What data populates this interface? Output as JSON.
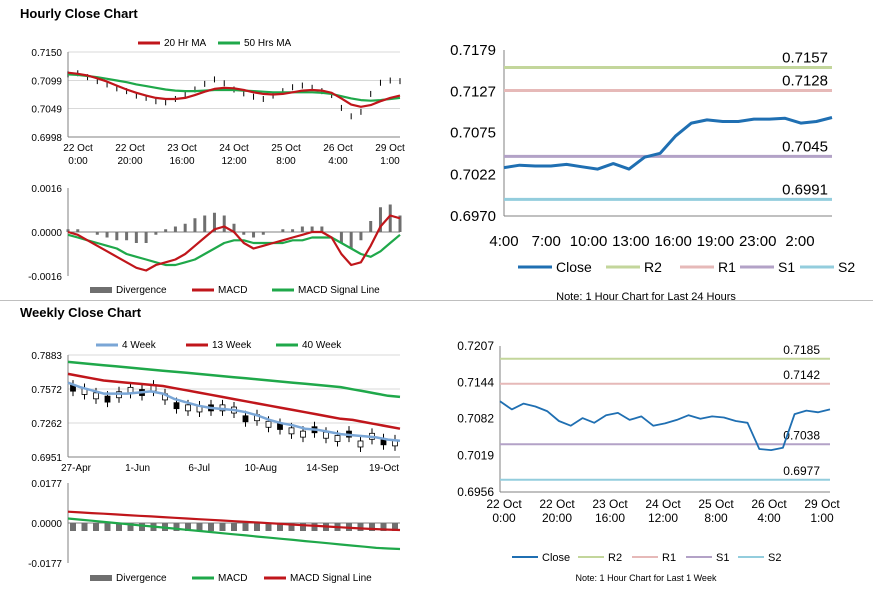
{
  "sections": {
    "hourly_title": "Hourly Close Chart",
    "weekly_title": "Weekly Close Chart"
  },
  "colors": {
    "close": "#1f6fb2",
    "ma20": "#c0161b",
    "ma50": "#1fa84a",
    "r2": "#c3d69b",
    "r1": "#e6b9b8",
    "s1": "#b3a2c7",
    "s2": "#93cddd",
    "divergence": "#6f6f6f",
    "signal": "#1fa84a"
  },
  "chart_data": [
    {
      "id": "hourly_price",
      "type": "line",
      "legend": [
        "20 Hr MA",
        "50 Hrs MA"
      ],
      "yticks": [
        "0.7150",
        "0.7099",
        "0.7049",
        "0.6998"
      ],
      "ylim": [
        0.6998,
        0.715
      ],
      "xticks": [
        [
          "22 Oct",
          "0:00"
        ],
        [
          "22 Oct",
          "20:00"
        ],
        [
          "23 Oct",
          "16:00"
        ],
        [
          "24 Oct",
          "12:00"
        ],
        [
          "25 Oct",
          "8:00"
        ],
        [
          "26 Oct",
          "4:00"
        ],
        [
          "29 Oct",
          "1:00"
        ]
      ],
      "close": [
        0.711,
        0.7112,
        0.7105,
        0.7098,
        0.7092,
        0.7085,
        0.708,
        0.7072,
        0.7068,
        0.7062,
        0.706,
        0.7066,
        0.7074,
        0.7083,
        0.7093,
        0.7101,
        0.7094,
        0.7083,
        0.7076,
        0.707,
        0.7066,
        0.7072,
        0.708,
        0.7087,
        0.709,
        0.7086,
        0.708,
        0.7073,
        0.705,
        0.7035,
        0.7043,
        0.7075,
        0.7095,
        0.7099,
        0.7098
      ],
      "ma20": [
        0.7113,
        0.7111,
        0.7108,
        0.7103,
        0.7097,
        0.709,
        0.7083,
        0.7077,
        0.7072,
        0.7068,
        0.7066,
        0.7066,
        0.7068,
        0.7073,
        0.7079,
        0.7084,
        0.7086,
        0.7085,
        0.7082,
        0.7078,
        0.7075,
        0.7074,
        0.7075,
        0.7078,
        0.7081,
        0.7082,
        0.7081,
        0.7077,
        0.7067,
        0.7056,
        0.7052,
        0.7055,
        0.7062,
        0.7068,
        0.7072
      ],
      "ma50": [
        0.711,
        0.7109,
        0.7107,
        0.7105,
        0.7102,
        0.7099,
        0.7096,
        0.7092,
        0.7089,
        0.7086,
        0.7083,
        0.7081,
        0.708,
        0.708,
        0.7081,
        0.7082,
        0.7082,
        0.7082,
        0.7081,
        0.708,
        0.7079,
        0.7078,
        0.7078,
        0.7078,
        0.7078,
        0.7078,
        0.7077,
        0.7075,
        0.7071,
        0.7067,
        0.7064,
        0.7063,
        0.7064,
        0.7066,
        0.7068
      ]
    },
    {
      "id": "hourly_macd",
      "type": "bar",
      "legend": [
        "Divergence",
        "MACD",
        "MACD Signal Line"
      ],
      "yticks": [
        "0.0016",
        "0.0000",
        "-0.0016"
      ],
      "ylim": [
        -0.0016,
        0.0016
      ],
      "macd": [
        0.0,
        -0.0001,
        -0.0003,
        -0.0005,
        -0.0007,
        -0.0009,
        -0.0011,
        -0.0013,
        -0.0014,
        -0.0012,
        -0.0011,
        -0.001,
        -0.0008,
        -0.0005,
        -0.0002,
        0.0001,
        0.0002,
        0.0,
        -0.0004,
        -0.0006,
        -0.0005,
        -0.0004,
        -0.0003,
        -0.0002,
        -0.0001,
        0.0,
        0.0,
        -0.0002,
        -0.0008,
        -0.0012,
        -0.0011,
        -0.0005,
        0.0002,
        0.0006,
        0.0005
      ],
      "signal": [
        -0.0001,
        -0.0002,
        -0.0003,
        -0.0004,
        -0.0005,
        -0.0006,
        -0.0008,
        -0.0009,
        -0.001,
        -0.0011,
        -0.0012,
        -0.0012,
        -0.0011,
        -0.001,
        -0.0008,
        -0.0006,
        -0.0004,
        -0.0003,
        -0.0003,
        -0.0004,
        -0.0004,
        -0.0004,
        -0.0004,
        -0.0003,
        -0.0003,
        -0.0002,
        -0.0002,
        -0.0002,
        -0.0004,
        -0.0006,
        -0.0008,
        -0.0009,
        -0.0007,
        -0.0004,
        -0.0001
      ]
    },
    {
      "id": "hourly_24h",
      "type": "line",
      "legend": [
        "Close",
        "R2",
        "R1",
        "S1",
        "S2"
      ],
      "yticks": [
        "0.7179",
        "0.7127",
        "0.7075",
        "0.7022",
        "0.6970"
      ],
      "ylim": [
        0.697,
        0.7179
      ],
      "xticks": [
        "4:00",
        "7:00",
        "10:00",
        "13:00",
        "16:00",
        "19:00",
        "23:00",
        "2:00"
      ],
      "close": [
        0.7031,
        0.7034,
        0.7033,
        0.7033,
        0.7035,
        0.7032,
        0.7029,
        0.7036,
        0.7029,
        0.7044,
        0.7049,
        0.7071,
        0.7087,
        0.7091,
        0.7089,
        0.7089,
        0.7092,
        0.7092,
        0.7093,
        0.7087,
        0.7089,
        0.7094
      ],
      "levels": {
        "R2": 0.7157,
        "R1": 0.7128,
        "S1": 0.7045,
        "S2": 0.6991
      },
      "level_labels": [
        "0.7157",
        "0.7128",
        "0.7045",
        "0.6991"
      ],
      "note": "Note: 1 Hour Chart for Last 24 Hours"
    },
    {
      "id": "weekly_price",
      "type": "line",
      "legend": [
        "4 Week",
        "13 Week",
        "40 Week"
      ],
      "yticks": [
        "0.7883",
        "0.7572",
        "0.7262",
        "0.6951"
      ],
      "ylim": [
        0.6951,
        0.7883
      ],
      "xticks": [
        "27-Apr",
        "1-Jun",
        "6-Jul",
        "10-Aug",
        "14-Sep",
        "19-Oct"
      ],
      "close": [
        0.758,
        0.755,
        0.751,
        0.748,
        0.752,
        0.756,
        0.754,
        0.758,
        0.75,
        0.742,
        0.74,
        0.739,
        0.74,
        0.74,
        0.738,
        0.73,
        0.731,
        0.725,
        0.723,
        0.719,
        0.716,
        0.72,
        0.715,
        0.712,
        0.716,
        0.707,
        0.714,
        0.709,
        0.708
      ],
      "w4": [
        0.763,
        0.759,
        0.756,
        0.753,
        0.753,
        0.753,
        0.754,
        0.755,
        0.753,
        0.748,
        0.745,
        0.742,
        0.74,
        0.739,
        0.738,
        0.736,
        0.733,
        0.729,
        0.726,
        0.724,
        0.721,
        0.72,
        0.718,
        0.716,
        0.715,
        0.714,
        0.713,
        0.711,
        0.71
      ],
      "w13": [
        0.771,
        0.769,
        0.767,
        0.765,
        0.764,
        0.763,
        0.762,
        0.761,
        0.76,
        0.758,
        0.756,
        0.754,
        0.752,
        0.75,
        0.748,
        0.746,
        0.744,
        0.742,
        0.74,
        0.738,
        0.736,
        0.734,
        0.732,
        0.73,
        0.729,
        0.727,
        0.725,
        0.723,
        0.721
      ],
      "w40": [
        0.782,
        0.781,
        0.78,
        0.779,
        0.778,
        0.777,
        0.776,
        0.775,
        0.774,
        0.773,
        0.772,
        0.771,
        0.77,
        0.769,
        0.768,
        0.767,
        0.766,
        0.765,
        0.764,
        0.763,
        0.762,
        0.761,
        0.76,
        0.759,
        0.757,
        0.755,
        0.753,
        0.751,
        0.75
      ]
    },
    {
      "id": "weekly_macd",
      "type": "bar",
      "legend": [
        "Divergence",
        "MACD",
        "MACD Signal Line"
      ],
      "yticks": [
        "0.0177",
        "0.0000",
        "-0.0177"
      ],
      "ylim": [
        -0.0177,
        0.0177
      ],
      "macd": [
        0.002,
        0.0015,
        0.001,
        0.0005,
        0.0,
        -0.0005,
        -0.001,
        -0.0015,
        -0.002,
        -0.0025,
        -0.003,
        -0.0035,
        -0.004,
        -0.0045,
        -0.005,
        -0.0055,
        -0.006,
        -0.0065,
        -0.007,
        -0.0075,
        -0.008,
        -0.0085,
        -0.009,
        -0.0095,
        -0.01,
        -0.0105,
        -0.011,
        -0.0113,
        -0.0115
      ],
      "signal": [
        0.005,
        0.0047,
        0.0044,
        0.0041,
        0.0038,
        0.0035,
        0.0032,
        0.0029,
        0.0026,
        0.0023,
        0.002,
        0.0017,
        0.0014,
        0.0011,
        0.0008,
        0.0005,
        0.0002,
        -0.0001,
        -0.0004,
        -0.0007,
        -0.001,
        -0.0013,
        -0.0016,
        -0.0019,
        -0.0022,
        -0.0025,
        -0.0027,
        -0.0029,
        -0.0031
      ]
    },
    {
      "id": "weekly_1w",
      "type": "line",
      "legend": [
        "Close",
        "R2",
        "R1",
        "S1",
        "S2"
      ],
      "yticks": [
        "0.7207",
        "0.7144",
        "0.7082",
        "0.7019",
        "0.6956"
      ],
      "ylim": [
        0.6956,
        0.7207
      ],
      "xticks": [
        [
          "22 Oct",
          "0:00"
        ],
        [
          "22 Oct",
          "20:00"
        ],
        [
          "23 Oct",
          "16:00"
        ],
        [
          "24 Oct",
          "12:00"
        ],
        [
          "25 Oct",
          "8:00"
        ],
        [
          "26 Oct",
          "4:00"
        ],
        [
          "29 Oct",
          "1:00"
        ]
      ],
      "close": [
        0.7112,
        0.7098,
        0.7108,
        0.7103,
        0.7095,
        0.7078,
        0.707,
        0.7083,
        0.7075,
        0.7088,
        0.7092,
        0.708,
        0.7086,
        0.707,
        0.7074,
        0.708,
        0.7088,
        0.7082,
        0.7086,
        0.7084,
        0.7078,
        0.7075,
        0.703,
        0.7028,
        0.7032,
        0.709,
        0.7096,
        0.7093,
        0.7098
      ],
      "levels": {
        "R2": 0.7185,
        "R1": 0.7142,
        "S1": 0.7038,
        "S2": 0.6977
      },
      "level_labels": [
        "0.7185",
        "0.7142",
        "0.7038",
        "0.6977"
      ],
      "note": "Note: 1 Hour Chart for Last 1 Week"
    }
  ]
}
